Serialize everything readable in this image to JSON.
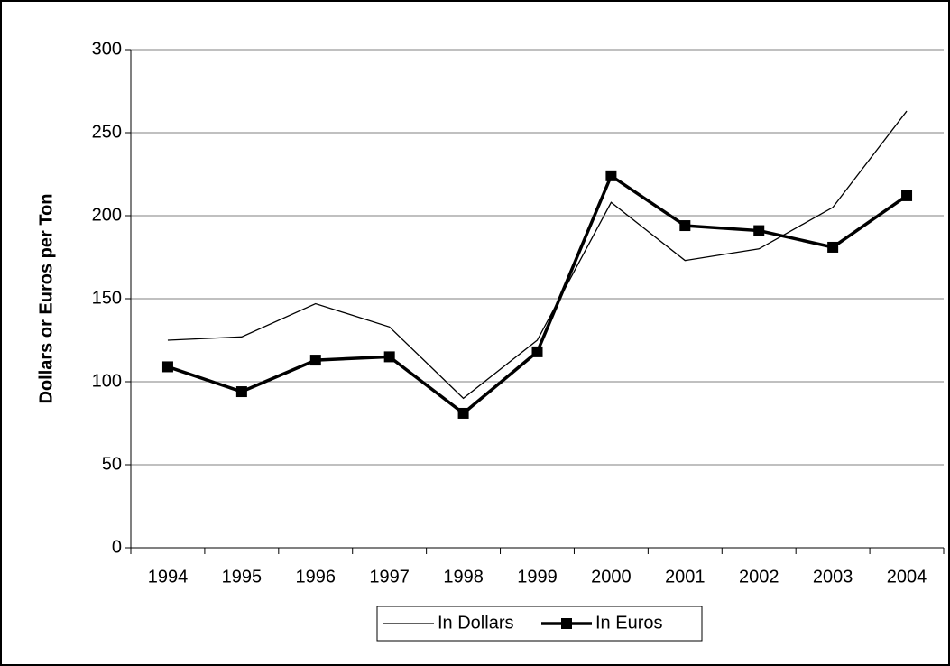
{
  "chart_data": {
    "type": "line",
    "y_label": "Dollars or Euros per Ton",
    "categories": [
      "1994",
      "1995",
      "1996",
      "1997",
      "1998",
      "1999",
      "2000",
      "2001",
      "2002",
      "2003",
      "2004"
    ],
    "series": [
      {
        "name": "In Dollars",
        "color": "#000000",
        "values": [
          125,
          127,
          147,
          133,
          90,
          125,
          208,
          173,
          180,
          205,
          263
        ]
      },
      {
        "name": "In Euros",
        "color": "#000000",
        "values": [
          109,
          94,
          113,
          115,
          81,
          118,
          224,
          194,
          191,
          181,
          212
        ]
      }
    ],
    "ylim": [
      0,
      300
    ],
    "yticks": [
      0,
      50,
      100,
      150,
      200,
      250,
      300
    ],
    "grid": true
  }
}
